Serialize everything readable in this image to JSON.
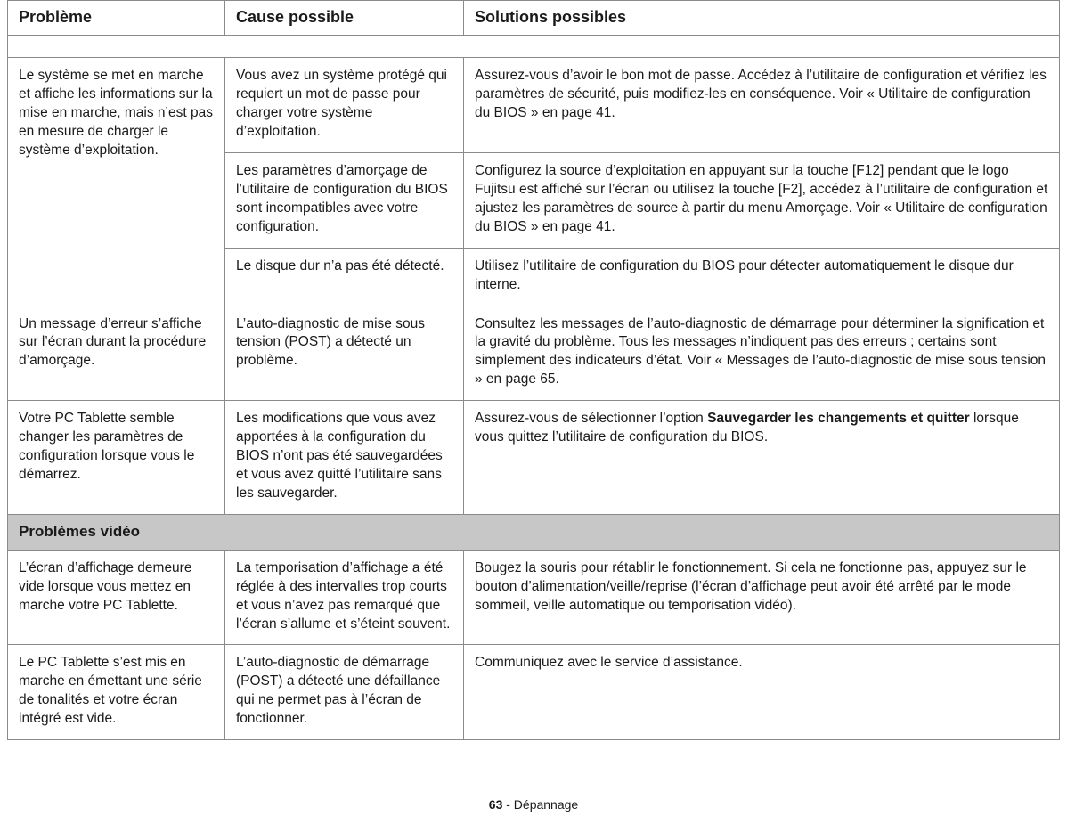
{
  "headers": {
    "c1": "Problème",
    "c2": "Cause possible",
    "c3": "Solutions possibles"
  },
  "row1": {
    "problem": "Le système se met en marche et affiche les informations sur la mise en marche, mais n’est pas en mesure de charger le système d’exploitation.",
    "a": {
      "cause": "Vous avez un système protégé qui requiert un mot de passe pour charger votre système d’exploitation.",
      "sol": "Assurez-vous d’avoir le bon mot de passe. Accédez à l’utilitaire de configuration et vérifiez les paramètres de sécurité, puis modifiez-les en conséquence. Voir « Utilitaire de configuration du BIOS » en page 41."
    },
    "b": {
      "cause": "Les paramètres d’amorçage de l’utilitaire de configuration du BIOS sont incompatibles avec votre configuration.",
      "sol": "Configurez la source d’exploitation en appuyant sur la touche [F12] pendant que le logo Fujitsu est affiché sur l’écran ou utilisez la touche [F2], accédez à l’utilitaire de configuration et ajustez les paramètres de source à partir du menu Amorçage. Voir « Utilitaire de configuration du BIOS » en page 41."
    },
    "c": {
      "cause": "Le disque dur n’a pas été détecté.",
      "sol": "Utilisez l’utilitaire de configuration du BIOS pour détecter automatiquement le disque dur interne."
    }
  },
  "row2": {
    "problem": "Un message d’erreur s’affiche sur l’écran durant la procédure d’amorçage.",
    "cause": "L’auto-diagnostic de mise sous tension (POST) a détecté un problème.",
    "sol": "Consultez les messages de l’auto-diagnostic de démarrage pour déterminer la signification et la gravité du problème. Tous les messages n’indiquent pas des erreurs ; certains sont simplement des indicateurs d’état. Voir « Messages de l’auto-diagnostic de mise sous tension » en page 65."
  },
  "row3": {
    "problem": "Votre PC Tablette semble changer les paramètres de configuration lorsque vous le démarrez.",
    "cause": "Les modifications que vous avez apportées à la configuration du BIOS n’ont pas été sauvegardées et vous avez quitté l’utilitaire sans les sauvegarder.",
    "sol_pre": "Assurez-vous de sélectionner l’option ",
    "sol_bold": "Sauvegarder les changements et quitter",
    "sol_post": " lorsque vous quittez l’utilitaire de configuration du BIOS."
  },
  "section_video": "Problèmes vidéo",
  "row4": {
    "problem": "L’écran d’affichage demeure vide lorsque vous mettez en marche votre PC Tablette.",
    "cause": "La temporisation d’affichage a été réglée à des intervalles trop courts et vous n’avez pas remarqué que l’écran s’allume et s’éteint souvent.",
    "sol": "Bougez la souris pour rétablir le fonctionnement. Si cela ne fonctionne pas, appuyez sur le bouton d’alimentation/veille/reprise (l’écran d’affichage peut avoir été arrêté par le mode sommeil, veille automatique ou temporisation vidéo)."
  },
  "row5": {
    "problem": "Le PC Tablette s’est mis en marche en émettant une série de tonalités et votre écran intégré est vide.",
    "cause": "L’auto-diagnostic de démarrage (POST) a détecté une défaillance qui ne permet pas à l’écran de fonctionner.",
    "sol": " Communiquez avec le service d’assistance."
  },
  "footer": {
    "page": "63",
    "label": " - Dépannage"
  }
}
